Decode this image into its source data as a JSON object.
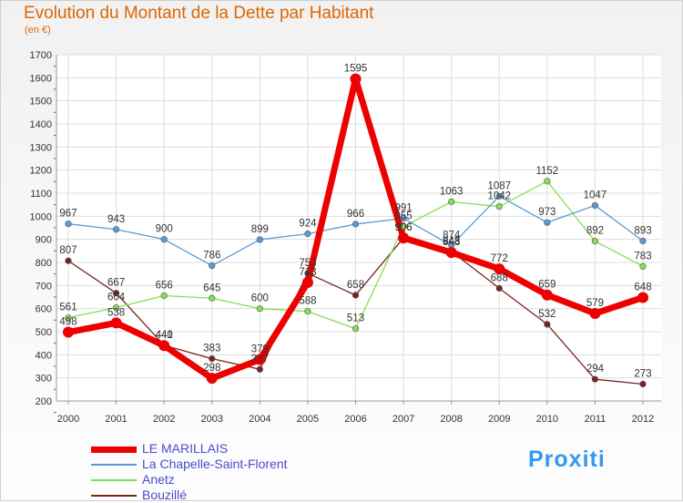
{
  "title": "Evolution du Montant de la Dette par Habitant",
  "subtitle": "(en €)",
  "logo": "Proxiti",
  "chart_data": {
    "type": "line",
    "title": "Evolution du Montant de la Dette par Habitant",
    "ylabel": "(en €)",
    "xlabel": "",
    "x": [
      "2000",
      "2001",
      "2002",
      "2003",
      "2004",
      "2005",
      "2006",
      "2007",
      "2008",
      "2009",
      "2010",
      "2011",
      "2012"
    ],
    "ylim": [
      200,
      1700
    ],
    "yticks": [
      200,
      300,
      400,
      500,
      600,
      700,
      800,
      900,
      1000,
      1100,
      1200,
      1300,
      1400,
      1500,
      1600,
      1700
    ],
    "grid": true,
    "legend": "bottom-left",
    "series": [
      {
        "name": "LE MARILLAIS",
        "color": "#ee0000",
        "values": [
          498,
          538,
          440,
          298,
          379,
          713,
          1595,
          906,
          843,
          772,
          659,
          579,
          648
        ]
      },
      {
        "name": "La Chapelle-Saint-Florent",
        "color": "#5b9bd5",
        "values": [
          967,
          943,
          900,
          786,
          899,
          924,
          966,
          991,
          874,
          1087,
          973,
          1047,
          893
        ]
      },
      {
        "name": "Anetz",
        "color": "#88dd55",
        "values": [
          561,
          604,
          656,
          645,
          600,
          588,
          513,
          955,
          1063,
          1042,
          1152,
          892,
          783
        ]
      },
      {
        "name": "Bouzillé",
        "color": "#7a2222",
        "values": [
          807,
          667,
          441,
          383,
          337,
          753,
          658,
          906,
          848,
          688,
          532,
          294,
          273
        ]
      }
    ]
  }
}
